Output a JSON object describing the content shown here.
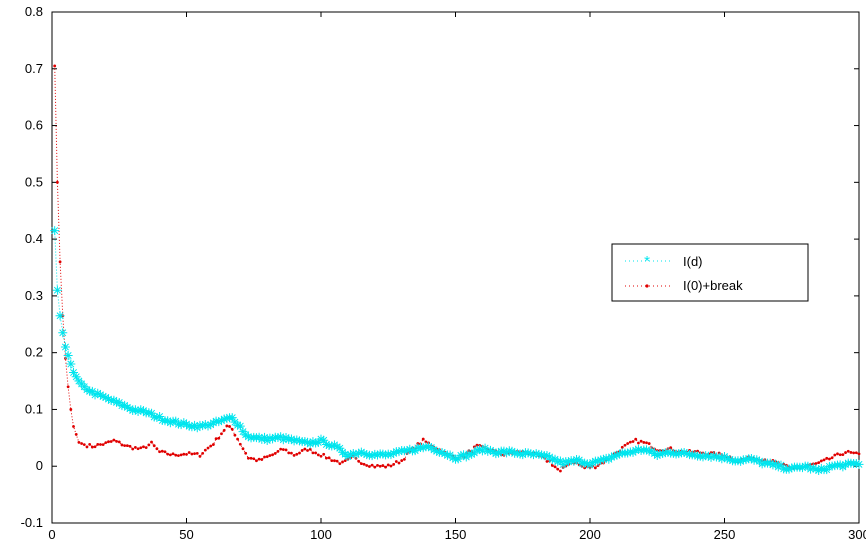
{
  "chart_data": {
    "type": "line",
    "title": "",
    "xlabel": "",
    "ylabel": "",
    "xlim": [
      0,
      300
    ],
    "ylim": [
      -0.1,
      0.8
    ],
    "xticks": [
      0,
      50,
      100,
      150,
      200,
      250,
      300
    ],
    "yticks": [
      -0.1,
      0,
      0.1,
      0.2,
      0.3,
      0.4,
      0.5,
      0.6,
      0.7,
      0.8
    ],
    "xtick_labels": [
      "0",
      "50",
      "100",
      "150",
      "200",
      "250",
      "300"
    ],
    "ytick_labels": [
      "-0.1",
      "0",
      "0.1",
      "0.2",
      "0.3",
      "0.4",
      "0.5",
      "0.6",
      "0.7",
      "0.8"
    ],
    "grid": false,
    "legend_position": "right",
    "series": [
      {
        "name": "I(d)",
        "color": "#00e5ee",
        "marker": "asterisk",
        "linestyle": "dotted",
        "knots": [
          [
            1,
            0.415
          ],
          [
            2,
            0.31
          ],
          [
            3,
            0.265
          ],
          [
            4,
            0.235
          ],
          [
            5,
            0.21
          ],
          [
            6,
            0.195
          ],
          [
            7,
            0.18
          ],
          [
            8,
            0.165
          ],
          [
            10,
            0.15
          ],
          [
            12,
            0.14
          ],
          [
            15,
            0.13
          ],
          [
            20,
            0.12
          ],
          [
            25,
            0.11
          ],
          [
            30,
            0.1
          ],
          [
            35,
            0.095
          ],
          [
            40,
            0.085
          ],
          [
            45,
            0.078
          ],
          [
            50,
            0.073
          ],
          [
            55,
            0.07
          ],
          [
            60,
            0.075
          ],
          [
            65,
            0.083
          ],
          [
            67,
            0.085
          ],
          [
            70,
            0.07
          ],
          [
            72,
            0.055
          ],
          [
            75,
            0.05
          ],
          [
            80,
            0.048
          ],
          [
            85,
            0.05
          ],
          [
            90,
            0.045
          ],
          [
            95,
            0.04
          ],
          [
            100,
            0.045
          ],
          [
            105,
            0.035
          ],
          [
            110,
            0.02
          ],
          [
            115,
            0.025
          ],
          [
            120,
            0.02
          ],
          [
            125,
            0.02
          ],
          [
            130,
            0.025
          ],
          [
            135,
            0.03
          ],
          [
            140,
            0.035
          ],
          [
            145,
            0.025
          ],
          [
            150,
            0.015
          ],
          [
            155,
            0.02
          ],
          [
            160,
            0.03
          ],
          [
            165,
            0.025
          ],
          [
            170,
            0.025
          ],
          [
            175,
            0.022
          ],
          [
            180,
            0.02
          ],
          [
            185,
            0.015
          ],
          [
            190,
            0.005
          ],
          [
            195,
            0.01
          ],
          [
            200,
            0.005
          ],
          [
            205,
            0.01
          ],
          [
            210,
            0.02
          ],
          [
            215,
            0.025
          ],
          [
            220,
            0.03
          ],
          [
            225,
            0.02
          ],
          [
            230,
            0.025
          ],
          [
            235,
            0.022
          ],
          [
            240,
            0.02
          ],
          [
            245,
            0.018
          ],
          [
            250,
            0.015
          ],
          [
            255,
            0.01
          ],
          [
            260,
            0.012
          ],
          [
            265,
            0.005
          ],
          [
            270,
            0.0
          ],
          [
            275,
            -0.005
          ],
          [
            280,
            0.0
          ],
          [
            285,
            -0.008
          ],
          [
            290,
            0.0
          ],
          [
            295,
            0.002
          ],
          [
            300,
            0.005
          ]
        ]
      },
      {
        "name": "I(0)+break",
        "color": "#e00000",
        "marker": "dot",
        "linestyle": "dotted",
        "knots": [
          [
            1,
            0.705
          ],
          [
            2,
            0.5
          ],
          [
            3,
            0.36
          ],
          [
            4,
            0.265
          ],
          [
            5,
            0.19
          ],
          [
            6,
            0.14
          ],
          [
            7,
            0.1
          ],
          [
            8,
            0.07
          ],
          [
            10,
            0.042
          ],
          [
            12,
            0.038
          ],
          [
            15,
            0.035
          ],
          [
            20,
            0.04
          ],
          [
            23,
            0.045
          ],
          [
            28,
            0.035
          ],
          [
            33,
            0.03
          ],
          [
            37,
            0.04
          ],
          [
            40,
            0.025
          ],
          [
            45,
            0.02
          ],
          [
            50,
            0.022
          ],
          [
            55,
            0.02
          ],
          [
            60,
            0.04
          ],
          [
            65,
            0.07
          ],
          [
            67,
            0.065
          ],
          [
            70,
            0.04
          ],
          [
            73,
            0.015
          ],
          [
            77,
            0.01
          ],
          [
            82,
            0.02
          ],
          [
            86,
            0.03
          ],
          [
            90,
            0.02
          ],
          [
            95,
            0.03
          ],
          [
            100,
            0.02
          ],
          [
            105,
            0.01
          ],
          [
            108,
            0.005
          ],
          [
            112,
            0.015
          ],
          [
            116,
            0.005
          ],
          [
            120,
            0.0
          ],
          [
            125,
            0.0
          ],
          [
            130,
            0.01
          ],
          [
            134,
            0.03
          ],
          [
            138,
            0.045
          ],
          [
            142,
            0.035
          ],
          [
            147,
            0.02
          ],
          [
            152,
            0.015
          ],
          [
            158,
            0.035
          ],
          [
            162,
            0.03
          ],
          [
            168,
            0.02
          ],
          [
            172,
            0.025
          ],
          [
            176,
            0.025
          ],
          [
            180,
            0.02
          ],
          [
            185,
            0.008
          ],
          [
            189,
            -0.01
          ],
          [
            193,
            0.01
          ],
          [
            198,
            -0.003
          ],
          [
            202,
            0.0
          ],
          [
            206,
            0.01
          ],
          [
            210,
            0.025
          ],
          [
            213,
            0.035
          ],
          [
            217,
            0.045
          ],
          [
            221,
            0.04
          ],
          [
            225,
            0.03
          ],
          [
            230,
            0.03
          ],
          [
            235,
            0.025
          ],
          [
            240,
            0.025
          ],
          [
            245,
            0.022
          ],
          [
            250,
            0.02
          ],
          [
            255,
            0.01
          ],
          [
            260,
            0.015
          ],
          [
            265,
            0.012
          ],
          [
            270,
            0.005
          ],
          [
            275,
            -0.005
          ],
          [
            280,
            0.0
          ],
          [
            285,
            0.005
          ],
          [
            290,
            0.015
          ],
          [
            295,
            0.025
          ],
          [
            300,
            0.02
          ]
        ]
      }
    ]
  }
}
